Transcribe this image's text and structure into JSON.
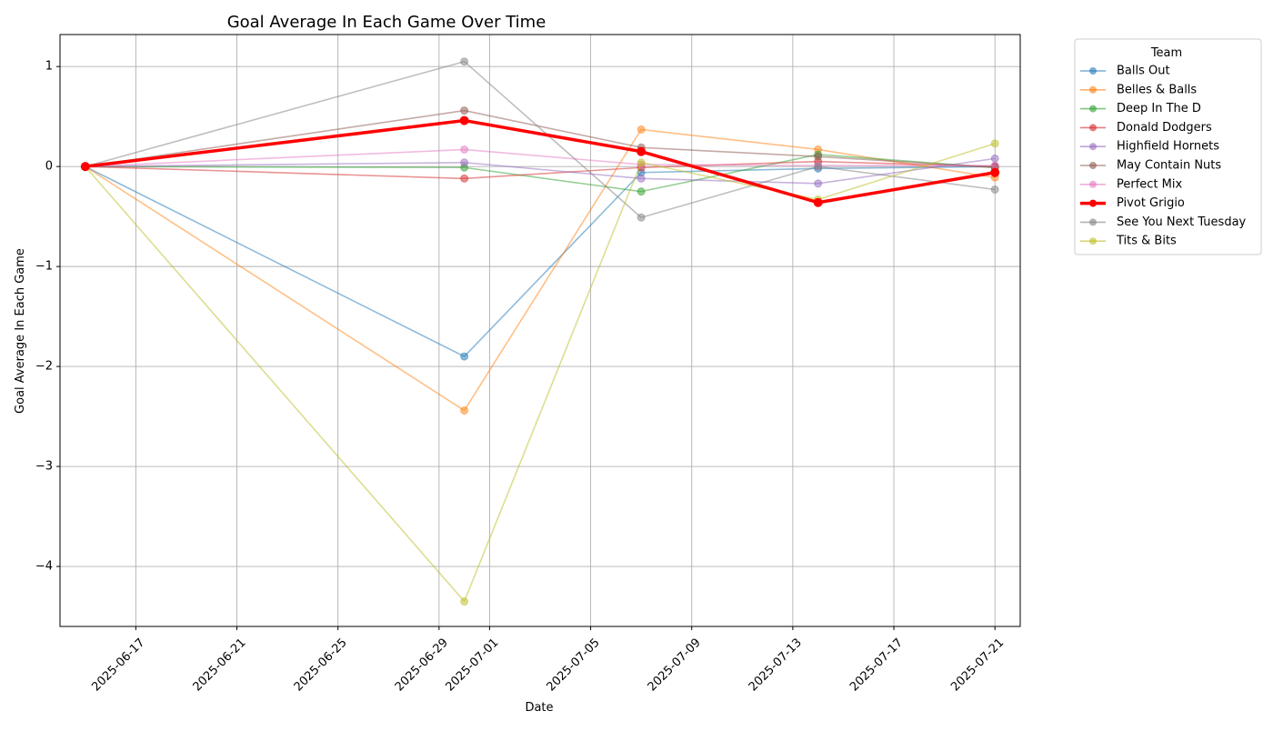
{
  "chart_data": {
    "type": "line",
    "title": "Goal Average In Each Game Over Time",
    "xlabel": "Date",
    "ylabel": "Goal Average In Each Game",
    "x": [
      "2025-06-15",
      "2025-06-30",
      "2025-07-07",
      "2025-07-14",
      "2025-07-21"
    ],
    "x_ticks": [
      "2025-06-17",
      "2025-06-21",
      "2025-06-25",
      "2025-06-29",
      "2025-07-01",
      "2025-07-05",
      "2025-07-09",
      "2025-07-13",
      "2025-07-17",
      "2025-07-21"
    ],
    "x_tick_labels": [
      "2025-06-17",
      "2025-06-21",
      "2025-06-25",
      "2025-06-29",
      "2025-07-01",
      "2025-07-05",
      "2025-07-09",
      "2025-07-13",
      "2025-07-17",
      "2025-07-21"
    ],
    "xlim": [
      "2025-06-14",
      "2025-07-22"
    ],
    "y_ticks": [
      1,
      0,
      -1,
      -2,
      -3,
      -4
    ],
    "y_tick_labels": [
      "1",
      "0",
      "−1",
      "−2",
      "−3",
      "−4"
    ],
    "ylim": [
      -4.6,
      1.32
    ],
    "grid": true,
    "legend": {
      "title": "Team",
      "placement": "outside-right"
    },
    "series": [
      {
        "name": "Balls Out",
        "color": "#1f77b4",
        "highlight": false,
        "values": [
          0,
          -1.9,
          -0.06,
          -0.02,
          0.0
        ]
      },
      {
        "name": "Belles & Balls",
        "color": "#ff7f0e",
        "highlight": false,
        "values": [
          0,
          -2.44,
          0.37,
          0.17,
          -0.11
        ]
      },
      {
        "name": "Deep In The D",
        "color": "#2ca02c",
        "highlight": false,
        "values": [
          0,
          -0.01,
          -0.25,
          0.12,
          -0.01
        ]
      },
      {
        "name": "Donald Dodgers",
        "color": "#d62728",
        "highlight": false,
        "values": [
          0,
          -0.12,
          -0.01,
          0.05,
          0.0
        ]
      },
      {
        "name": "Highfield Hornets",
        "color": "#9467bd",
        "highlight": false,
        "values": [
          0,
          0.04,
          -0.12,
          -0.17,
          0.08
        ]
      },
      {
        "name": "May Contain Nuts",
        "color": "#8c564b",
        "highlight": false,
        "values": [
          0,
          0.56,
          0.19,
          0.1,
          -0.01
        ]
      },
      {
        "name": "Perfect Mix",
        "color": "#e377c2",
        "highlight": false,
        "values": [
          0,
          0.17,
          0.02,
          0.01,
          0.01
        ]
      },
      {
        "name": "Pivot Grigio",
        "color": "#ff0000",
        "highlight": true,
        "values": [
          0,
          0.46,
          0.15,
          -0.36,
          -0.06
        ]
      },
      {
        "name": "See You Next Tuesday",
        "color": "#7f7f7f",
        "highlight": false,
        "values": [
          0,
          1.05,
          -0.51,
          0.0,
          -0.23
        ]
      },
      {
        "name": "Tits & Bits",
        "color": "#bcbd22",
        "highlight": false,
        "values": [
          0,
          -4.35,
          0.04,
          -0.33,
          0.23
        ]
      }
    ]
  }
}
